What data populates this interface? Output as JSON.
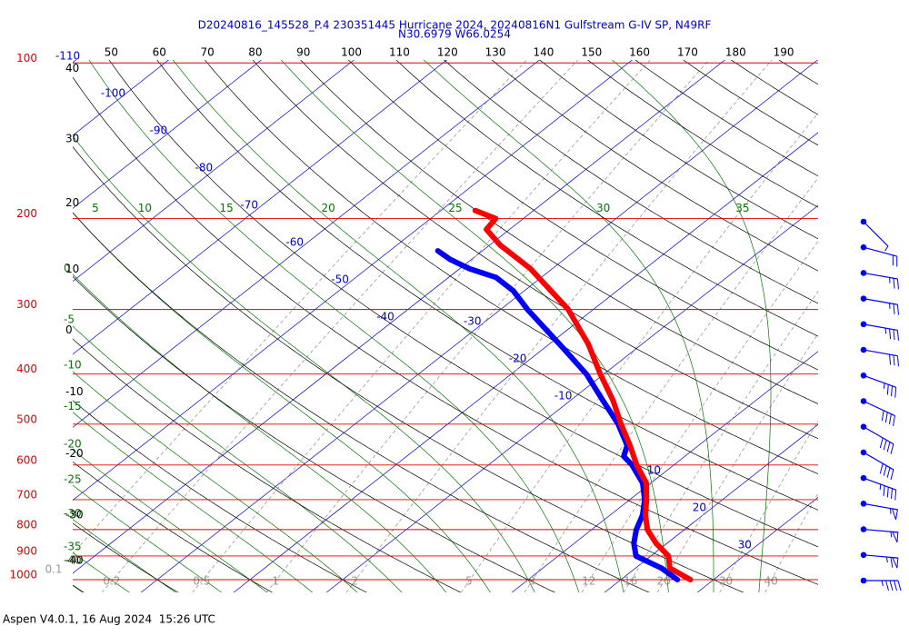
{
  "chart_data": {
    "type": "skewt",
    "title": "D20240816_145528_P.4 230351445 Hurricane 2024, 20240816N1 Gulfstream G-IV SP, N49RF",
    "subtitle": "N30.6979 W66.0254",
    "caption": "Aspen V4.0.1, 16 Aug 2024  15:26 UTC",
    "isobars": [
      100,
      200,
      300,
      400,
      500,
      600,
      700,
      800,
      900,
      1000
    ],
    "isobar_color": "#dd0000",
    "isotherms": [
      -110,
      -100,
      -90,
      -80,
      -70,
      -60,
      -50,
      -40,
      -30,
      -20,
      -10,
      10,
      20,
      30
    ],
    "isotherm_color": "#0000cc",
    "dry_adiabats_top": [
      50,
      60,
      70,
      80,
      90,
      100,
      110,
      120,
      130,
      140,
      150,
      160,
      170,
      180,
      190
    ],
    "dry_adiabats_left": [
      40,
      30,
      20,
      10,
      0,
      -10,
      -20,
      -30,
      -40
    ],
    "dry_adiabat_color": "#000000",
    "moist_adiabats_top": [
      5,
      10,
      15,
      20,
      25,
      30,
      35
    ],
    "moist_adiabats_left": [
      0,
      -5,
      -10,
      -15,
      -20,
      -25,
      -30,
      -35,
      -40
    ],
    "moist_adiabat_color": "#007700",
    "mixing_ratios": [
      0.1,
      0.2,
      0.5,
      1,
      2,
      5,
      8,
      12,
      16,
      20,
      30,
      40
    ],
    "mixing_ratio_color": "#999999",
    "temperature": {
      "color": "#ff0000",
      "pressure": [
        1000,
        950,
        900,
        850,
        800,
        750,
        700,
        650,
        600,
        550,
        500,
        450,
        400,
        350,
        300,
        250,
        225,
        210,
        200,
        193
      ],
      "values": [
        27.5,
        23.7,
        21.9,
        18.8,
        16.0,
        13.8,
        11.8,
        9.5,
        6.0,
        2.6,
        -1.3,
        -5.4,
        -10.4,
        -15.8,
        -22.7,
        -32.4,
        -38.9,
        -42.5,
        -43.0,
        -46.3
      ]
    },
    "dewpoint": {
      "color": "#0000ff",
      "pressure": [
        1000,
        950,
        900,
        850,
        800,
        750,
        700,
        650,
        600,
        577,
        550,
        500,
        450,
        400,
        350,
        300,
        276,
        260,
        250,
        240,
        231
      ],
      "values": [
        26.1,
        22.8,
        18.4,
        16.4,
        14.8,
        13.5,
        11.6,
        9.1,
        5.5,
        3.4,
        2.3,
        -1.6,
        -6.5,
        -11.9,
        -18.9,
        -27.1,
        -31.2,
        -34.9,
        -39.0,
        -42.3,
        -44.8
      ]
    },
    "wind_barbs": {
      "color": "#0000ff",
      "speed": [
        5,
        20,
        25,
        25,
        35,
        30,
        35,
        40,
        40,
        40,
        45,
        55,
        55,
        65,
        45
      ],
      "direction": [
        135,
        105,
        100,
        100,
        100,
        100,
        110,
        115,
        120,
        120,
        110,
        100,
        95,
        95,
        90
      ]
    }
  }
}
